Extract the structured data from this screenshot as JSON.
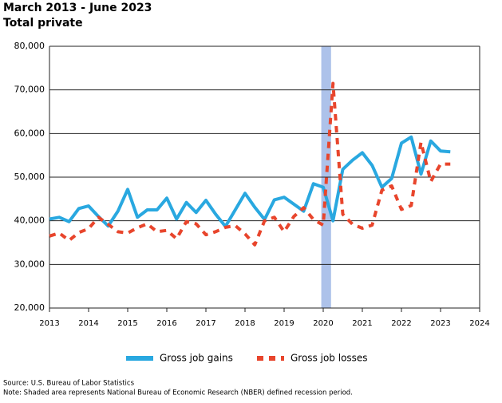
{
  "chart_data": {
    "type": "line",
    "title": "March 2013 - June 2023",
    "subtitle": "Total private",
    "source": "Source: U.S. Bureau of Labor Statistics",
    "note": "Note: Shaded area represents National Bureau of Economic Research (NBER) defined recession period.",
    "x": [
      2013,
      2013.25,
      2013.5,
      2013.75,
      2014,
      2014.25,
      2014.5,
      2014.75,
      2015,
      2015.25,
      2015.5,
      2015.75,
      2016,
      2016.25,
      2016.5,
      2016.75,
      2017,
      2017.25,
      2017.5,
      2017.75,
      2018,
      2018.25,
      2018.5,
      2018.75,
      2019,
      2019.25,
      2019.5,
      2019.75,
      2020,
      2020.25,
      2020.5,
      2020.75,
      2021,
      2021.25,
      2021.5,
      2021.75,
      2022,
      2022.25,
      2022.5,
      2022.75,
      2023,
      2023.25
    ],
    "series": [
      {
        "name": "Gross job gains",
        "color": "#29a8e0",
        "dashed": false,
        "values": [
          40400,
          40800,
          39800,
          42800,
          43400,
          41000,
          38800,
          42200,
          47200,
          40800,
          42500,
          42500,
          45200,
          40400,
          44200,
          41900,
          44700,
          41500,
          38700,
          42500,
          46300,
          43100,
          40300,
          44800,
          45400,
          43800,
          42200,
          48500,
          47700,
          40000,
          51800,
          53900,
          55600,
          52700,
          47700,
          49700,
          57800,
          59200,
          50700,
          58300,
          56000,
          55800
        ]
      },
      {
        "name": "Gross job losses",
        "color": "#e8452c",
        "dashed": true,
        "values": [
          36500,
          37200,
          35500,
          37300,
          38200,
          40800,
          39200,
          37500,
          37200,
          38400,
          39300,
          37500,
          37800,
          35900,
          39800,
          39300,
          36800,
          37500,
          38500,
          38900,
          37000,
          34500,
          40000,
          40800,
          37500,
          41000,
          43000,
          40300,
          39000,
          71500,
          41500,
          39200,
          38300,
          39000,
          47000,
          48000,
          42600,
          43500,
          58000,
          49000,
          53000,
          53000
        ]
      }
    ],
    "recession": [
      2019.95,
      2020.2
    ],
    "recession_color": "#adc2ea",
    "xlim": [
      2013,
      2024
    ],
    "xticks": [
      2013,
      2014,
      2015,
      2016,
      2017,
      2018,
      2019,
      2020,
      2021,
      2022,
      2023,
      2024
    ],
    "ylim": [
      20000,
      80000
    ],
    "yticks": [
      {
        "value": 20000,
        "label": "20,000"
      },
      {
        "value": 30000,
        "label": "30,000"
      },
      {
        "value": 40000,
        "label": "40,000"
      },
      {
        "value": 50000,
        "label": "50,000"
      },
      {
        "value": 60000,
        "label": "60,000"
      },
      {
        "value": 70000,
        "label": "70,000"
      },
      {
        "value": 80000,
        "label": "80,000"
      }
    ],
    "grid": true
  }
}
